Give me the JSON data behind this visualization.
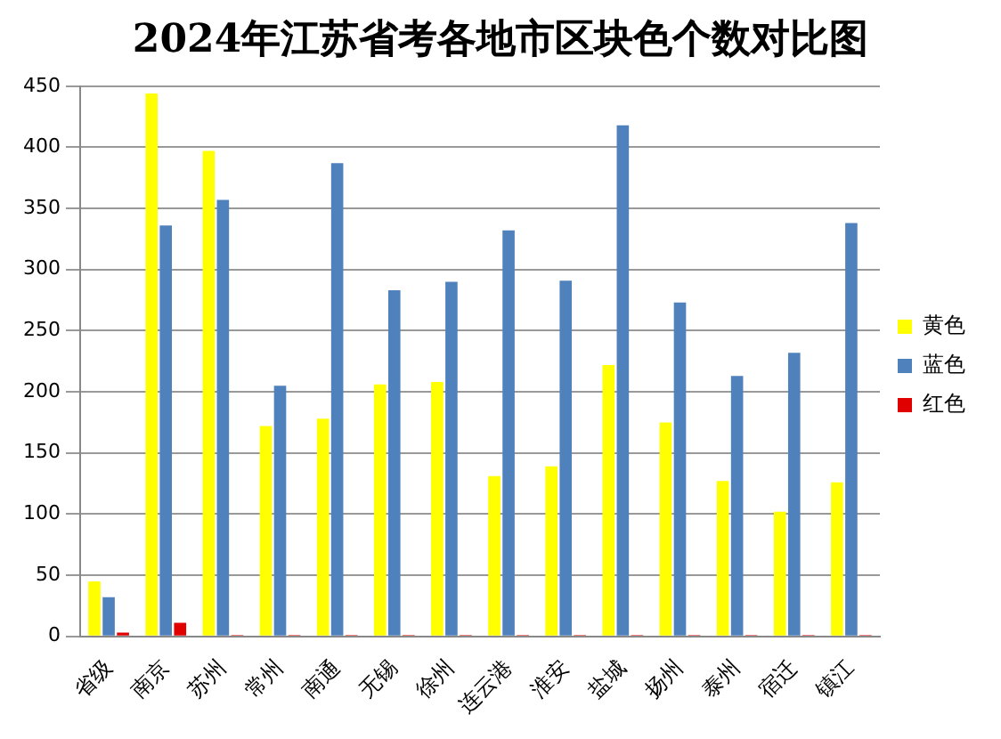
{
  "chart_data": {
    "type": "bar",
    "title": "2024年江苏省考各地市区块色个数对比图",
    "categories": [
      "省级",
      "南京",
      "苏州",
      "常州",
      "南通",
      "无锡",
      "徐州",
      "连云港",
      "淮安",
      "盐城",
      "扬州",
      "泰州",
      "宿迁",
      "镇江"
    ],
    "series": [
      {
        "name": "黄色",
        "color": "#ffff00",
        "values": [
          45,
          444,
          397,
          172,
          178,
          206,
          208,
          131,
          139,
          222,
          175,
          127,
          102,
          126
        ]
      },
      {
        "name": "蓝色",
        "color": "#4f81bd",
        "values": [
          32,
          336,
          357,
          205,
          387,
          283,
          290,
          332,
          291,
          418,
          273,
          213,
          232,
          338
        ]
      },
      {
        "name": "红色",
        "color": "#e00000",
        "values": [
          3,
          11,
          1,
          1,
          1,
          1,
          1,
          1,
          1,
          1,
          1,
          1,
          1,
          1
        ]
      }
    ],
    "ylim": [
      0,
      450
    ],
    "yticks": [
      0,
      50,
      100,
      150,
      200,
      250,
      300,
      350,
      400,
      450
    ],
    "grid": "y",
    "legend": "right"
  }
}
